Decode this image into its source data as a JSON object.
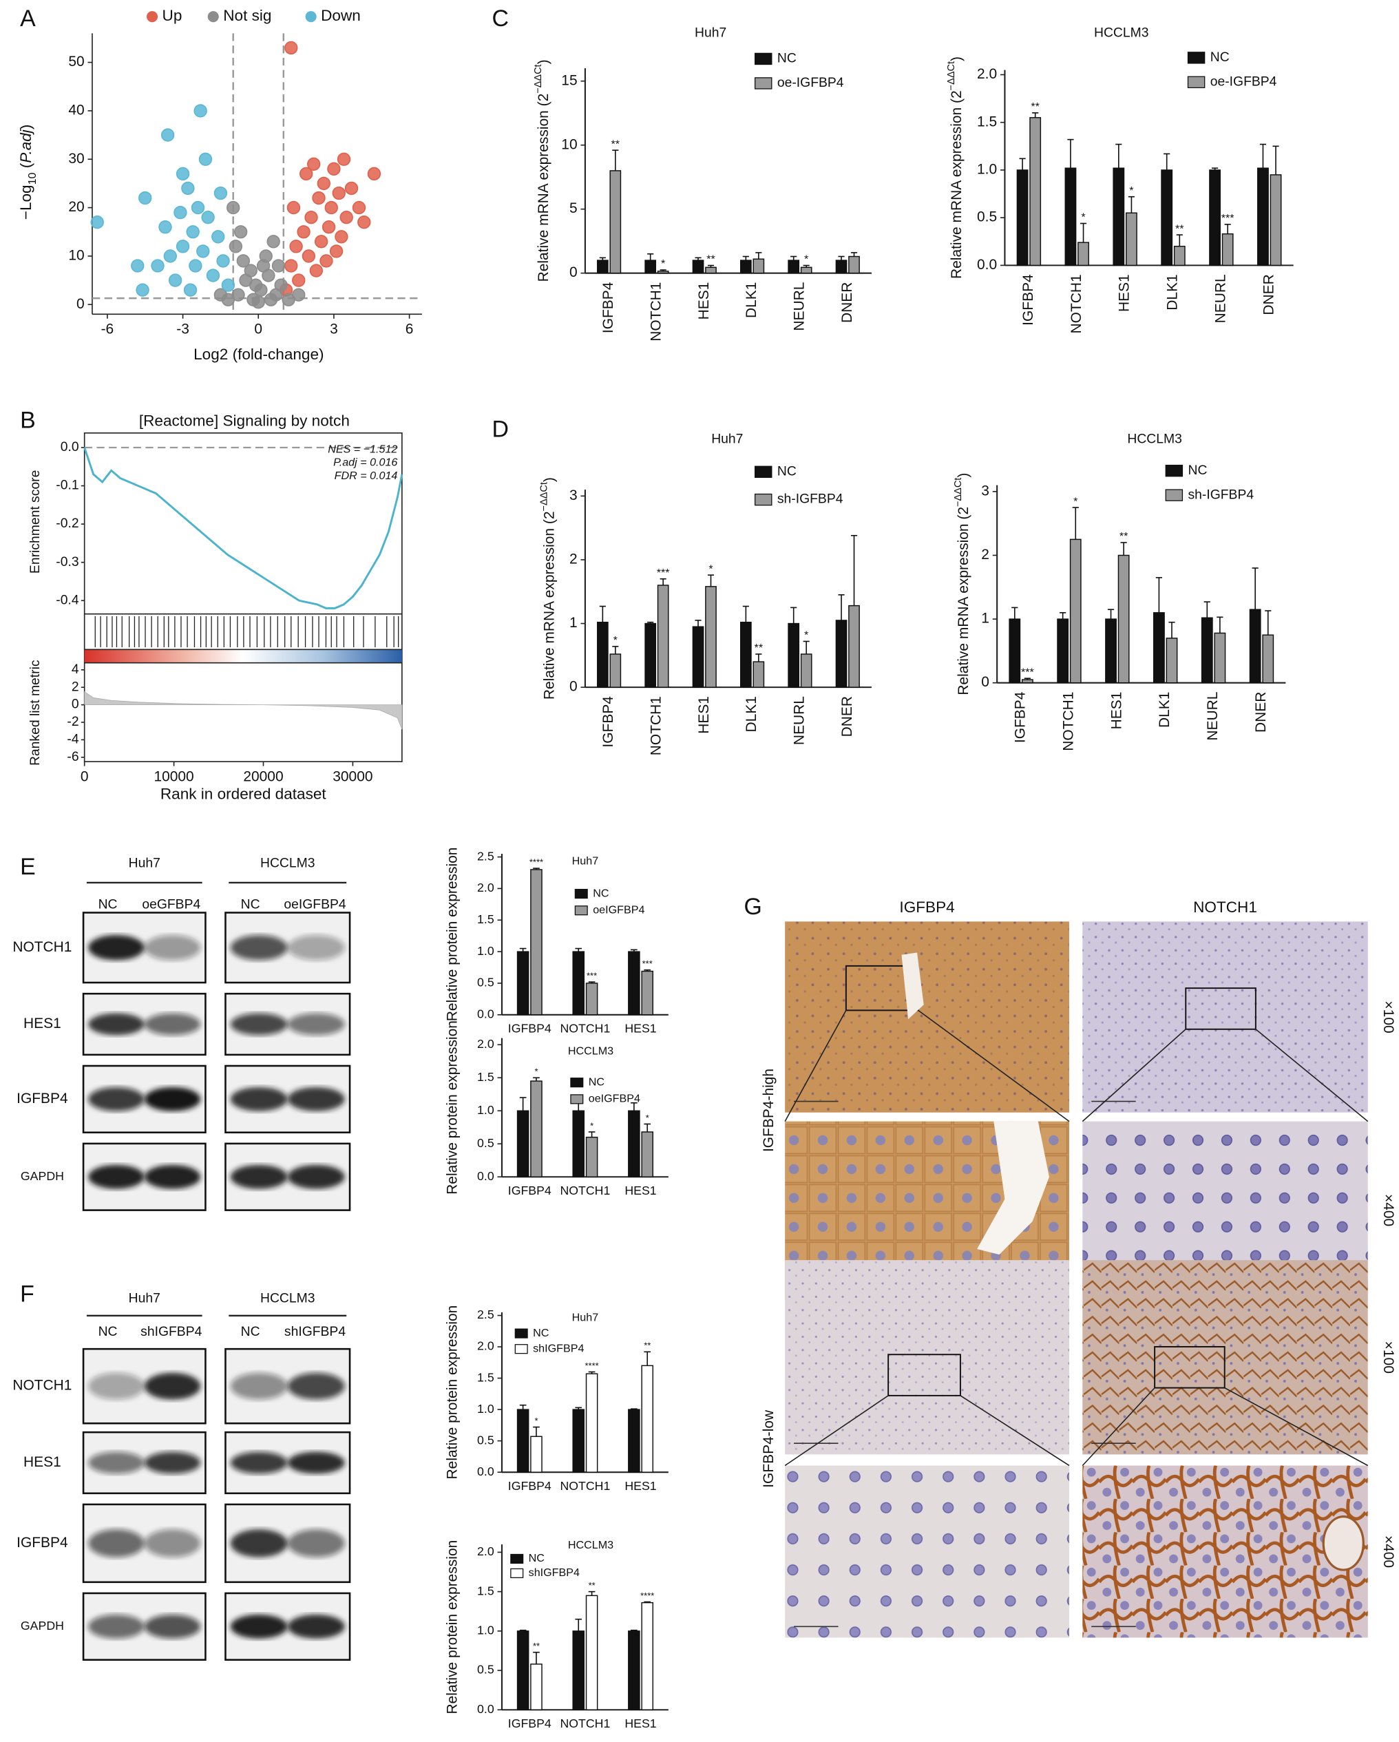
{
  "panels": [
    "A",
    "B",
    "C",
    "D",
    "E",
    "F",
    "G"
  ],
  "chart_data": [
    {
      "type": "scatter",
      "xlabel": "Log2 (fold-change)",
      "ylabel": [
        "−Log",
        "10",
        " (",
        "P.adj",
        ")"
      ],
      "xlim": [
        -6.6,
        6.5
      ],
      "ylim": [
        -2,
        56
      ],
      "xticks": [
        -6,
        -3,
        0,
        3,
        6
      ],
      "yticks": [
        0,
        10,
        20,
        30,
        40,
        50
      ],
      "thresholds": {
        "x": [
          -1,
          1
        ],
        "y": 1.3
      },
      "legend": "top",
      "series": [
        {
          "name": "Up",
          "color": "#e0604c",
          "x": [
            1.1,
            1.3,
            1.5,
            1.6,
            1.8,
            2.0,
            2.1,
            2.3,
            2.4,
            2.5,
            2.6,
            2.8,
            2.9,
            3.0,
            3.1,
            3.2,
            3.4,
            3.5,
            3.7,
            4.0,
            4.2,
            2.2,
            4.6,
            1.9,
            2.7,
            3.3,
            1.4,
            1.3
          ],
          "values": [
            3,
            8,
            12,
            5,
            15,
            10,
            18,
            7,
            22,
            13,
            25,
            16,
            20,
            28,
            11,
            23,
            30,
            18,
            24,
            20,
            17,
            29,
            27,
            27,
            9,
            14,
            20,
            53
          ]
        },
        {
          "name": "Not sig",
          "color": "#8c8c8c",
          "x": [
            -0.8,
            -0.5,
            -0.2,
            0.1,
            0.4,
            0.7,
            -0.6,
            0.3,
            0.8,
            -0.9,
            0.0,
            0.5,
            -0.3,
            0.9,
            -0.7,
            0.6,
            -0.1,
            0.2,
            -1.0,
            -1.2,
            1.2,
            -1.5,
            1.6
          ],
          "values": [
            2,
            5,
            1,
            3,
            6,
            2,
            9,
            10,
            8,
            12,
            0.5,
            1,
            7,
            4,
            15,
            13,
            4,
            8,
            20,
            1,
            1,
            2,
            2
          ]
        },
        {
          "name": "Down",
          "color": "#5bb7d5",
          "x": [
            -1.2,
            -1.4,
            -1.6,
            -1.8,
            -2.0,
            -2.2,
            -2.4,
            -2.5,
            -2.6,
            -2.8,
            -3.0,
            -3.1,
            -3.3,
            -3.5,
            -3.7,
            -4.0,
            -2.3,
            -3.6,
            -2.1,
            -3.0,
            -4.5,
            -4.6,
            -4.8,
            -6.4,
            -1.5,
            -2.7
          ],
          "values": [
            4,
            9,
            14,
            6,
            18,
            11,
            20,
            8,
            15,
            24,
            12,
            19,
            5,
            10,
            16,
            8,
            40,
            35,
            30,
            27,
            22,
            3,
            8,
            17,
            23,
            3
          ]
        }
      ]
    },
    {
      "type": "gsea",
      "title": "[Reactome] Signaling by notch",
      "annotations": [
        "NES = −1.512",
        "P.adj = 0.016",
        "FDR = 0.014"
      ],
      "ylabel": "Enrichment score",
      "xlabel": "Rank in ordered dataset",
      "xlim": [
        0,
        35500
      ],
      "xticks": [
        0,
        10000,
        20000,
        30000
      ],
      "ylim": [
        -0.435,
        0.038
      ],
      "yticks": [
        {
          "value": 0,
          "label": "0.0"
        },
        -0.1,
        -0.2,
        -0.3,
        -0.4
      ],
      "color": "#4bb3cc",
      "x": [
        0,
        1000,
        2000,
        3000,
        4000,
        6000,
        8000,
        10000,
        12000,
        14000,
        16000,
        18000,
        20000,
        22000,
        24000,
        26000,
        27000,
        28000,
        29000,
        30000,
        31000,
        32000,
        33000,
        34000,
        35000,
        35500
      ],
      "values": [
        0,
        -0.07,
        -0.09,
        -0.06,
        -0.08,
        -0.1,
        -0.12,
        -0.16,
        -0.2,
        -0.24,
        -0.28,
        -0.31,
        -0.34,
        -0.37,
        -0.4,
        -0.41,
        -0.42,
        -0.42,
        -0.41,
        -0.39,
        -0.36,
        -0.32,
        -0.28,
        -0.22,
        -0.13,
        -0.07
      ],
      "hits": [
        1200,
        1800,
        2500,
        3100,
        3600,
        4200,
        5000,
        5600,
        6100,
        6800,
        7500,
        8200,
        8900,
        9400,
        10100,
        10800,
        11500,
        12300,
        13000,
        13600,
        14200,
        14900,
        15600,
        16300,
        17100,
        17800,
        18500,
        19300,
        20100,
        20800,
        21600,
        22400,
        23100,
        23900,
        24700,
        25500,
        26200,
        27000,
        27600,
        28200,
        29000,
        30100,
        31200,
        32500,
        33800,
        34600,
        35100
      ],
      "metric": {
        "ylabel": "Ranked list metric",
        "ylim": [
          -6.5,
          4.8
        ],
        "yticks": [
          4,
          2,
          0,
          -2,
          -4,
          -6
        ],
        "color": "#c8c8c8",
        "x": [
          0,
          1000,
          3000,
          6000,
          10000,
          15000,
          20000,
          25000,
          30000,
          33000,
          35000,
          35500
        ],
        "values": [
          1.5,
          0.8,
          0.5,
          0.3,
          0.15,
          0.05,
          0,
          -0.1,
          -0.3,
          -0.6,
          -1.5,
          -2.8
        ]
      }
    },
    {
      "type": "bar",
      "title": "Huh7",
      "ylabel": [
        "Relative mRNA expression (2",
        "−ΔΔCt",
        ")"
      ],
      "categories": [
        "IGFBP4",
        "NOTCH1",
        "HES1",
        "DLK1",
        "NEURL",
        "DNER"
      ],
      "ylim": [
        0,
        16
      ],
      "yticks": [
        0,
        5,
        10,
        15
      ],
      "legend": "top right",
      "series": [
        {
          "name": "NC",
          "color": "#111111",
          "values": [
            1,
            1,
            1,
            1,
            1,
            1
          ],
          "errors": [
            0.2,
            0.5,
            0.2,
            0.3,
            0.3,
            0.3
          ]
        },
        {
          "name": "oe-IGFBP4",
          "color": "#9a9a9a",
          "values": [
            8.0,
            0.15,
            0.45,
            1.1,
            0.45,
            1.3
          ],
          "errors": [
            1.6,
            0.1,
            0.15,
            0.5,
            0.15,
            0.3
          ],
          "annotations": [
            "**",
            "*",
            "**",
            null,
            "*",
            null
          ]
        }
      ]
    },
    {
      "type": "bar",
      "title": "HCCLM3",
      "ylabel": [
        "Relative mRNA expression (2",
        "−ΔΔCt",
        ")"
      ],
      "categories": [
        "IGFBP4",
        "NOTCH1",
        "HES1",
        "DLK1",
        "NEURL",
        "DNER"
      ],
      "ylim": [
        0,
        2.05
      ],
      "yticks": [
        {
          "value": 0,
          "label": "0.0"
        },
        0.5,
        {
          "value": 1,
          "label": "1.0"
        },
        1.5,
        {
          "value": 2,
          "label": "2.0"
        }
      ],
      "legend": "top right",
      "series": [
        {
          "name": "NC",
          "color": "#111111",
          "values": [
            1.0,
            1.02,
            1.02,
            1.0,
            1.0,
            1.02
          ],
          "errors": [
            0.12,
            0.3,
            0.25,
            0.17,
            0.02,
            0.25
          ]
        },
        {
          "name": "oe-IGFBP4",
          "color": "#9a9a9a",
          "values": [
            1.55,
            0.24,
            0.55,
            0.2,
            0.33,
            0.95
          ],
          "errors": [
            0.05,
            0.2,
            0.17,
            0.12,
            0.1,
            0.3
          ],
          "annotations": [
            "**",
            "*",
            "*",
            "**",
            "***",
            null
          ]
        }
      ]
    },
    {
      "type": "bar",
      "title": "Huh7",
      "ylabel": [
        "Relative mRNA expression (2",
        "−ΔΔCt",
        ")"
      ],
      "categories": [
        "IGFBP4",
        "NOTCH1",
        "HES1",
        "DLK1",
        "NEURL",
        "DNER"
      ],
      "ylim": [
        0,
        3.1
      ],
      "yticks": [
        0,
        1,
        2,
        3
      ],
      "legend": "top right",
      "series": [
        {
          "name": "NC",
          "color": "#111111",
          "values": [
            1.02,
            1.0,
            0.95,
            1.02,
            1.0,
            1.05
          ],
          "errors": [
            0.25,
            0.02,
            0.1,
            0.25,
            0.25,
            0.4
          ]
        },
        {
          "name": "sh-IGFBP4",
          "color": "#9a9a9a",
          "values": [
            0.52,
            1.6,
            1.58,
            0.4,
            0.52,
            1.28
          ],
          "errors": [
            0.12,
            0.1,
            0.18,
            0.12,
            0.2,
            1.1
          ],
          "annotations": [
            "*",
            "***",
            "*",
            "**",
            "*",
            null
          ]
        }
      ]
    },
    {
      "type": "bar",
      "title": "HCCLM3",
      "ylabel": [
        "Relative mRNA expression (2",
        "−ΔΔCt",
        ")"
      ],
      "categories": [
        "IGFBP4",
        "NOTCH1",
        "HES1",
        "DLK1",
        "NEURL",
        "DNER"
      ],
      "ylim": [
        0,
        3.1
      ],
      "yticks": [
        0,
        1,
        2,
        3
      ],
      "legend": "top right",
      "series": [
        {
          "name": "NC",
          "color": "#111111",
          "values": [
            1.0,
            1.0,
            1.0,
            1.1,
            1.02,
            1.15
          ],
          "errors": [
            0.18,
            0.1,
            0.15,
            0.55,
            0.25,
            0.65
          ]
        },
        {
          "name": "sh-IGFBP4",
          "color": "#9a9a9a",
          "values": [
            0.05,
            2.25,
            2.0,
            0.7,
            0.78,
            0.75
          ],
          "errors": [
            0.02,
            0.5,
            0.2,
            0.25,
            0.25,
            0.38
          ],
          "annotations": [
            "***",
            "*",
            "**",
            null,
            null,
            null
          ]
        }
      ]
    },
    {
      "type": "bar",
      "title": "Huh7",
      "ylabel": "Relative protein expression",
      "categories": [
        "IGFBP4",
        "NOTCH1",
        "HES1"
      ],
      "ylim": [
        0,
        2.55
      ],
      "yticks": [
        {
          "value": 0,
          "label": "0.0"
        },
        0.5,
        {
          "value": 1,
          "label": "1.0"
        },
        1.5,
        {
          "value": 2,
          "label": "2.0"
        },
        2.5
      ],
      "legend": "top right",
      "series": [
        {
          "name": "NC",
          "color": "#111111",
          "values": [
            1.0,
            1.0,
            1.0
          ],
          "errors": [
            0.05,
            0.05,
            0.03
          ]
        },
        {
          "name": "oeIGFBP4",
          "color": "#9a9a9a",
          "values": [
            2.3,
            0.5,
            0.69
          ],
          "errors": [
            0.02,
            0.02,
            0.02
          ],
          "annotations": [
            "****",
            "***",
            "***"
          ]
        }
      ]
    },
    {
      "type": "bar",
      "title": "HCCLM3",
      "ylabel": "Relative protein expression",
      "categories": [
        "IGFBP4",
        "NOTCH1",
        "HES1"
      ],
      "ylim": [
        0,
        2.1
      ],
      "yticks": [
        {
          "value": 0,
          "label": "0.0"
        },
        0.5,
        {
          "value": 1,
          "label": "1.0"
        },
        1.5,
        {
          "value": 2,
          "label": "2.0"
        }
      ],
      "legend": "top right",
      "series": [
        {
          "name": "NC",
          "color": "#111111",
          "values": [
            1.0,
            1.0,
            1.0
          ],
          "errors": [
            0.2,
            0.15,
            0.12
          ]
        },
        {
          "name": "oeIGFBP4",
          "color": "#9a9a9a",
          "values": [
            1.45,
            0.6,
            0.68
          ],
          "errors": [
            0.05,
            0.08,
            0.12
          ],
          "annotations": [
            "*",
            "*",
            "*"
          ]
        }
      ]
    },
    {
      "type": "bar",
      "title": "Huh7",
      "ylabel": "Relative protein expression",
      "categories": [
        "IGFBP4",
        "NOTCH1",
        "HES1"
      ],
      "ylim": [
        0,
        2.55
      ],
      "yticks": [
        {
          "value": 0,
          "label": "0.0"
        },
        0.5,
        {
          "value": 1,
          "label": "1.0"
        },
        1.5,
        {
          "value": 2,
          "label": "2.0"
        },
        2.5
      ],
      "legend": "top left",
      "series": [
        {
          "name": "NC",
          "color": "#111111",
          "values": [
            1.0,
            1.0,
            1.0
          ],
          "errors": [
            0.07,
            0.03,
            0.01
          ]
        },
        {
          "name": "shIGFBP4",
          "color": "#ffffff",
          "values": [
            0.57,
            1.57,
            1.7
          ],
          "errors": [
            0.15,
            0.03,
            0.22
          ],
          "annotations": [
            "*",
            "****",
            "**"
          ]
        }
      ]
    },
    {
      "type": "bar",
      "title": "HCCLM3",
      "ylabel": "Relative protein expression",
      "categories": [
        "IGFBP4",
        "NOTCH1",
        "HES1"
      ],
      "ylim": [
        0,
        2.1
      ],
      "yticks": [
        {
          "value": 0,
          "label": "0.0"
        },
        0.5,
        {
          "value": 1,
          "label": "1.0"
        },
        1.5,
        {
          "value": 2,
          "label": "2.0"
        }
      ],
      "legend": "top left",
      "series": [
        {
          "name": "NC",
          "color": "#111111",
          "values": [
            1.0,
            1.0,
            1.0
          ],
          "errors": [
            0.01,
            0.15,
            0.01
          ]
        },
        {
          "name": "shIGFBP4",
          "color": "#ffffff",
          "values": [
            0.58,
            1.45,
            1.36
          ],
          "errors": [
            0.15,
            0.05,
            0.01
          ],
          "annotations": [
            "**",
            "**",
            "****"
          ]
        }
      ]
    }
  ],
  "blots": [
    {
      "cells": [
        "Huh7",
        "HCCLM3"
      ],
      "lanes": [
        [
          "NC",
          "oeGFBP4"
        ],
        [
          "NC",
          "oeIGFBP4"
        ]
      ],
      "proteins": [
        "NOTCH1",
        "HES1",
        "IGFBP4",
        "GAPDH"
      ]
    },
    {
      "cells": [
        "Huh7",
        "HCCLM3"
      ],
      "lanes": [
        [
          "NC",
          "shIGFBP4"
        ],
        [
          "NC",
          "shIGFBP4"
        ]
      ],
      "proteins": [
        "NOTCH1",
        "HES1",
        "IGFBP4",
        "GAPDH"
      ]
    }
  ],
  "ihc": {
    "columns": [
      "IGFBP4",
      "NOTCH1"
    ],
    "rows": [
      "IGFBP4-high",
      "IGFBP4-low"
    ],
    "magnifications": [
      "×100",
      "×400"
    ]
  }
}
